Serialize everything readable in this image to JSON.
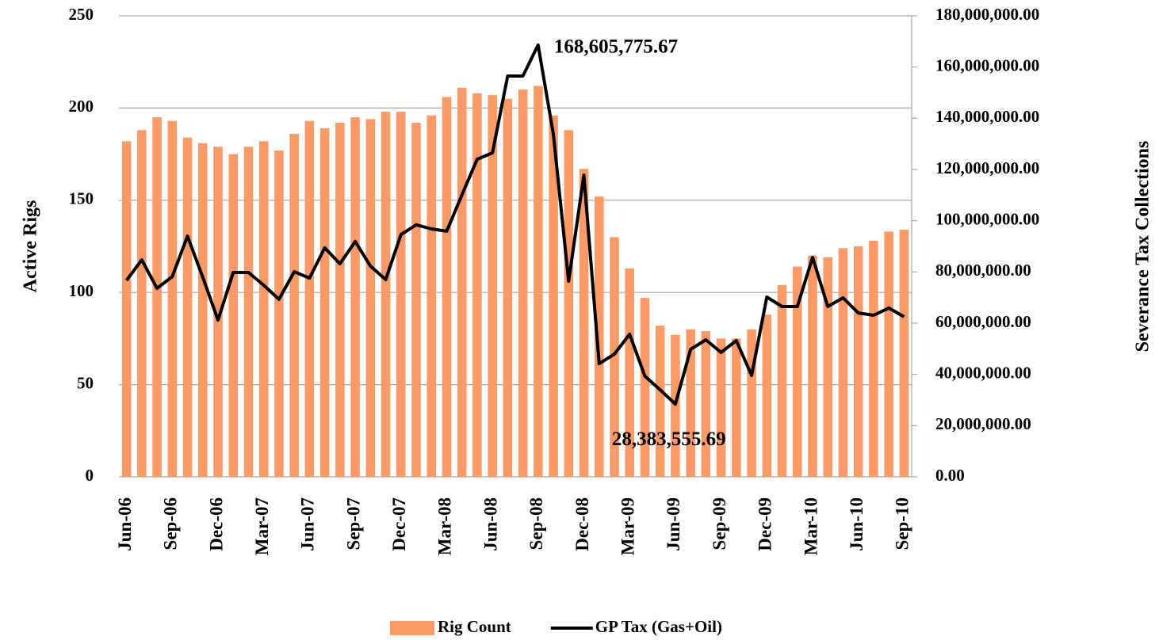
{
  "chart_data": {
    "type": "bar_line",
    "ylabel": "Active Rigs",
    "y2label": "Severance Tax Collections",
    "categories": [
      "Jun-06",
      null,
      null,
      "Sep-06",
      null,
      null,
      "Dec-06",
      null,
      null,
      "Mar-07",
      null,
      null,
      "Jun-07",
      null,
      null,
      "Sep-07",
      null,
      null,
      "Dec-07",
      null,
      null,
      "Mar-08",
      null,
      null,
      "Jun-08",
      null,
      null,
      "Sep-08",
      null,
      null,
      "Dec-08",
      null,
      null,
      "Mar-09",
      null,
      null,
      "Jun-09",
      null,
      null,
      "Sep-09",
      null,
      null,
      "Dec-09",
      null,
      null,
      "Mar-10",
      null,
      null,
      "Jun-10",
      null,
      null,
      "Sep-10"
    ],
    "series": [
      {
        "name": "Rig Count",
        "type": "bar",
        "color": "#fb9a67",
        "values": [
          182,
          188,
          195,
          193,
          184,
          181,
          179,
          175,
          179,
          182,
          177,
          186,
          193,
          189,
          192,
          195,
          194,
          198,
          198,
          192,
          196,
          206,
          211,
          208,
          207,
          205,
          210,
          212,
          196,
          188,
          167,
          152,
          130,
          113,
          97,
          82,
          77,
          80,
          79,
          75,
          75,
          80,
          88,
          104,
          114,
          120,
          119,
          124,
          125,
          128,
          133,
          134
        ]
      },
      {
        "name": "GP Tax (Gas+Oil)",
        "type": "line",
        "axis": "y2",
        "color": "#000000",
        "values": [
          76700000,
          84700000,
          73600000,
          78200000,
          94000000,
          77900000,
          61200000,
          79800000,
          79800000,
          74800000,
          69300000,
          80100000,
          77600000,
          89400000,
          83200000,
          91900000,
          82300000,
          77000000,
          94600000,
          98400000,
          96800000,
          95900000,
          110100000,
          124000000,
          126500000,
          156500000,
          156500000,
          168605775.67,
          133600000,
          76400000,
          117800000,
          44200000,
          47900000,
          55700000,
          39300000,
          34000000,
          28383555.69,
          49800000,
          53500000,
          48600000,
          53200000,
          39600000,
          70200000,
          66500000,
          66500000,
          85700000,
          66500000,
          69900000,
          64000000,
          63100000,
          65900000,
          62500000
        ],
        "value_labels": [
          null,
          null,
          null,
          null,
          null,
          null,
          null,
          null,
          null,
          null,
          null,
          null,
          null,
          null,
          null,
          null,
          null,
          null,
          null,
          null,
          null,
          null,
          null,
          null,
          null,
          null,
          null,
          "168,605,775.67",
          null,
          null,
          null,
          null,
          null,
          null,
          null,
          null,
          "28,383,555.69",
          null,
          null,
          null,
          null,
          null,
          null,
          null,
          null,
          null,
          null,
          null,
          null,
          null,
          null,
          null
        ]
      }
    ],
    "ylim": [
      0,
      250
    ],
    "yticks": [
      0,
      50,
      100,
      150,
      200,
      250
    ],
    "y2lim": [
      0,
      180000000
    ],
    "y2ticks": [
      {
        "value": 0,
        "label": "0.00"
      },
      {
        "value": 20000000,
        "label": "20,000,000.00"
      },
      {
        "value": 40000000,
        "label": "40,000,000.00"
      },
      {
        "value": 60000000,
        "label": "60,000,000.00"
      },
      {
        "value": 80000000,
        "label": "80,000,000.00"
      },
      {
        "value": 100000000,
        "label": "100,000,000.00"
      },
      {
        "value": 120000000,
        "label": "120,000,000.00"
      },
      {
        "value": 140000000,
        "label": "140,000,000.00"
      },
      {
        "value": 160000000,
        "label": "160,000,000.00"
      },
      {
        "value": 180000000,
        "label": "180,000,000.00"
      }
    ],
    "grid": true,
    "legend": "bottom"
  }
}
